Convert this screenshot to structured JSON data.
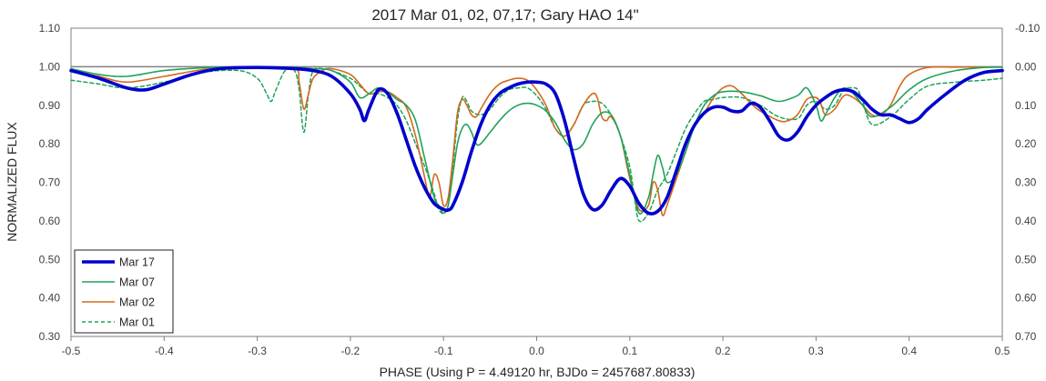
{
  "chart_data": {
    "type": "line",
    "title": "2017 Mar 01, 02, 07,17; Gary HAO 14\"",
    "xlabel": "PHASE (Using P = 4.49120 hr, BJDo = 2457687.80833)",
    "ylabel": "NORMALIZED FLUX",
    "xlim": [
      -0.5,
      0.5
    ],
    "ylim": [
      0.3,
      1.1
    ],
    "y2lim": [
      -0.1,
      0.7
    ],
    "x_ticks": [
      "-0.5",
      "-0.4",
      "-0.3",
      "-0.2",
      "-0.1",
      "0.0",
      "0.1",
      "0.2",
      "0.3",
      "0.4",
      "0.5"
    ],
    "y_ticks": [
      "0.30",
      "0.40",
      "0.50",
      "0.60",
      "0.70",
      "0.80",
      "0.90",
      "1.00",
      "1.10"
    ],
    "y2_ticks": [
      "0.70",
      "0.60",
      "0.50",
      "0.40",
      "0.30",
      "0.20",
      "0.10",
      "0.00",
      "-0.10"
    ],
    "reference_line": 1.0,
    "grid": false,
    "legend_position": "bottom-left",
    "series": [
      {
        "name": "Mar 17",
        "color": "#0000CC",
        "style": "solid-thick",
        "x": [
          -0.5,
          -0.47,
          -0.44,
          -0.42,
          -0.4,
          -0.37,
          -0.34,
          -0.3,
          -0.26,
          -0.24,
          -0.22,
          -0.2,
          -0.19,
          -0.185,
          -0.18,
          -0.17,
          -0.16,
          -0.15,
          -0.14,
          -0.13,
          -0.12,
          -0.11,
          -0.1,
          -0.095,
          -0.09,
          -0.08,
          -0.07,
          -0.06,
          -0.05,
          -0.04,
          -0.03,
          -0.02,
          -0.01,
          0.0,
          0.01,
          0.02,
          0.03,
          0.04,
          0.05,
          0.06,
          0.07,
          0.08,
          0.09,
          0.1,
          0.11,
          0.12,
          0.13,
          0.14,
          0.15,
          0.16,
          0.17,
          0.18,
          0.19,
          0.2,
          0.21,
          0.22,
          0.23,
          0.24,
          0.25,
          0.26,
          0.27,
          0.28,
          0.29,
          0.3,
          0.31,
          0.32,
          0.33,
          0.34,
          0.35,
          0.36,
          0.37,
          0.38,
          0.39,
          0.4,
          0.41,
          0.42,
          0.44,
          0.46,
          0.48,
          0.5
        ],
        "y": [
          0.99,
          0.97,
          0.945,
          0.94,
          0.955,
          0.98,
          0.995,
          0.998,
          0.995,
          0.99,
          0.975,
          0.93,
          0.89,
          0.86,
          0.89,
          0.94,
          0.93,
          0.88,
          0.81,
          0.74,
          0.685,
          0.645,
          0.63,
          0.628,
          0.64,
          0.7,
          0.78,
          0.85,
          0.9,
          0.93,
          0.945,
          0.955,
          0.96,
          0.96,
          0.955,
          0.93,
          0.86,
          0.76,
          0.67,
          0.63,
          0.64,
          0.68,
          0.71,
          0.69,
          0.645,
          0.62,
          0.625,
          0.66,
          0.73,
          0.8,
          0.85,
          0.88,
          0.895,
          0.895,
          0.885,
          0.885,
          0.905,
          0.895,
          0.86,
          0.82,
          0.81,
          0.83,
          0.87,
          0.9,
          0.92,
          0.935,
          0.94,
          0.935,
          0.915,
          0.89,
          0.875,
          0.875,
          0.865,
          0.855,
          0.865,
          0.89,
          0.93,
          0.965,
          0.985,
          0.99
        ]
      },
      {
        "name": "Mar 07",
        "color": "#1FA35A",
        "style": "solid",
        "x": [
          -0.5,
          -0.47,
          -0.44,
          -0.4,
          -0.35,
          -0.3,
          -0.26,
          -0.24,
          -0.22,
          -0.2,
          -0.19,
          -0.18,
          -0.17,
          -0.16,
          -0.15,
          -0.14,
          -0.13,
          -0.12,
          -0.11,
          -0.105,
          -0.1,
          -0.095,
          -0.09,
          -0.085,
          -0.08,
          -0.075,
          -0.07,
          -0.065,
          -0.06,
          -0.05,
          -0.04,
          -0.03,
          -0.02,
          -0.01,
          0.0,
          0.01,
          0.02,
          0.03,
          0.04,
          0.05,
          0.06,
          0.07,
          0.08,
          0.09,
          0.1,
          0.11,
          0.12,
          0.125,
          0.13,
          0.135,
          0.14,
          0.15,
          0.16,
          0.17,
          0.18,
          0.19,
          0.2,
          0.22,
          0.24,
          0.26,
          0.28,
          0.29,
          0.3,
          0.305,
          0.31,
          0.32,
          0.33,
          0.34,
          0.35,
          0.36,
          0.38,
          0.4,
          0.42,
          0.45,
          0.48,
          0.5
        ],
        "y": [
          0.995,
          0.98,
          0.975,
          0.99,
          0.998,
          0.999,
          0.998,
          0.995,
          0.99,
          0.96,
          0.92,
          0.93,
          0.945,
          0.935,
          0.915,
          0.9,
          0.86,
          0.76,
          0.66,
          0.64,
          0.62,
          0.64,
          0.72,
          0.8,
          0.84,
          0.85,
          0.83,
          0.8,
          0.8,
          0.83,
          0.86,
          0.885,
          0.9,
          0.905,
          0.9,
          0.885,
          0.855,
          0.81,
          0.785,
          0.8,
          0.85,
          0.88,
          0.875,
          0.82,
          0.72,
          0.62,
          0.66,
          0.72,
          0.77,
          0.74,
          0.7,
          0.72,
          0.78,
          0.85,
          0.9,
          0.925,
          0.935,
          0.935,
          0.925,
          0.91,
          0.925,
          0.945,
          0.9,
          0.86,
          0.875,
          0.92,
          0.945,
          0.93,
          0.9,
          0.87,
          0.895,
          0.94,
          0.97,
          0.99,
          0.998,
          0.999
        ]
      },
      {
        "name": "Mar 02",
        "color": "#D2691E",
        "style": "solid",
        "x": [
          -0.5,
          -0.47,
          -0.44,
          -0.4,
          -0.35,
          -0.3,
          -0.26,
          -0.255,
          -0.25,
          -0.245,
          -0.24,
          -0.23,
          -0.22,
          -0.2,
          -0.19,
          -0.18,
          -0.17,
          -0.16,
          -0.15,
          -0.14,
          -0.13,
          -0.12,
          -0.115,
          -0.11,
          -0.105,
          -0.1,
          -0.095,
          -0.09,
          -0.085,
          -0.08,
          -0.075,
          -0.07,
          -0.065,
          -0.06,
          -0.05,
          -0.04,
          -0.03,
          -0.02,
          -0.01,
          0.0,
          0.01,
          0.02,
          0.03,
          0.04,
          0.05,
          0.06,
          0.065,
          0.07,
          0.075,
          0.08,
          0.09,
          0.1,
          0.11,
          0.12,
          0.125,
          0.13,
          0.135,
          0.14,
          0.15,
          0.16,
          0.17,
          0.18,
          0.19,
          0.2,
          0.21,
          0.22,
          0.23,
          0.24,
          0.26,
          0.27,
          0.28,
          0.29,
          0.3,
          0.305,
          0.31,
          0.32,
          0.33,
          0.34,
          0.35,
          0.36,
          0.37,
          0.38,
          0.39,
          0.4,
          0.42,
          0.45,
          0.48,
          0.5
        ],
        "y": [
          0.99,
          0.975,
          0.96,
          0.975,
          0.995,
          0.998,
          0.995,
          0.96,
          0.89,
          0.93,
          0.97,
          0.99,
          0.995,
          0.98,
          0.955,
          0.93,
          0.935,
          0.935,
          0.92,
          0.895,
          0.82,
          0.71,
          0.66,
          0.72,
          0.7,
          0.64,
          0.66,
          0.76,
          0.88,
          0.915,
          0.9,
          0.875,
          0.87,
          0.89,
          0.93,
          0.955,
          0.965,
          0.97,
          0.965,
          0.94,
          0.9,
          0.84,
          0.82,
          0.85,
          0.9,
          0.93,
          0.92,
          0.87,
          0.86,
          0.87,
          0.82,
          0.71,
          0.63,
          0.64,
          0.7,
          0.68,
          0.615,
          0.64,
          0.71,
          0.78,
          0.85,
          0.88,
          0.92,
          0.945,
          0.95,
          0.93,
          0.905,
          0.885,
          0.86,
          0.86,
          0.875,
          0.915,
          0.92,
          0.905,
          0.875,
          0.89,
          0.925,
          0.92,
          0.9,
          0.875,
          0.875,
          0.9,
          0.95,
          0.98,
          0.998,
          0.999,
          0.999,
          0.999
        ]
      },
      {
        "name": "Mar 01",
        "color": "#1FA35A",
        "style": "dashed",
        "x": [
          -0.5,
          -0.47,
          -0.44,
          -0.4,
          -0.36,
          -0.32,
          -0.3,
          -0.29,
          -0.285,
          -0.28,
          -0.27,
          -0.26,
          -0.255,
          -0.25,
          -0.245,
          -0.24,
          -0.23,
          -0.22,
          -0.2,
          -0.19,
          -0.18,
          -0.17,
          -0.16,
          -0.15,
          -0.14,
          -0.13,
          -0.12,
          -0.11,
          -0.105,
          -0.1,
          -0.095,
          -0.09,
          -0.085,
          -0.08,
          -0.075,
          -0.07,
          -0.06,
          -0.05,
          -0.04,
          -0.03,
          -0.02,
          -0.01,
          0.0,
          0.01,
          0.02,
          0.03,
          0.04,
          0.05,
          0.06,
          0.07,
          0.08,
          0.09,
          0.1,
          0.105,
          0.11,
          0.12,
          0.13,
          0.14,
          0.15,
          0.16,
          0.17,
          0.18,
          0.19,
          0.2,
          0.22,
          0.24,
          0.26,
          0.28,
          0.29,
          0.3,
          0.31,
          0.32,
          0.33,
          0.34,
          0.345,
          0.35,
          0.36,
          0.38,
          0.4,
          0.42,
          0.45,
          0.48,
          0.5
        ],
        "y": [
          0.965,
          0.955,
          0.945,
          0.96,
          0.985,
          0.99,
          0.97,
          0.93,
          0.91,
          0.94,
          0.99,
          0.99,
          0.94,
          0.83,
          0.93,
          0.99,
          0.995,
          0.99,
          0.97,
          0.95,
          0.93,
          0.93,
          0.92,
          0.9,
          0.86,
          0.8,
          0.74,
          0.67,
          0.63,
          0.62,
          0.64,
          0.74,
          0.86,
          0.92,
          0.91,
          0.885,
          0.875,
          0.89,
          0.92,
          0.94,
          0.945,
          0.945,
          0.925,
          0.89,
          0.84,
          0.82,
          0.85,
          0.9,
          0.91,
          0.905,
          0.875,
          0.82,
          0.74,
          0.66,
          0.6,
          0.62,
          0.68,
          0.72,
          0.78,
          0.84,
          0.88,
          0.91,
          0.915,
          0.92,
          0.92,
          0.9,
          0.87,
          0.865,
          0.9,
          0.91,
          0.89,
          0.9,
          0.94,
          0.945,
          0.94,
          0.91,
          0.85,
          0.87,
          0.915,
          0.95,
          0.96,
          0.965,
          0.97
        ]
      }
    ]
  }
}
